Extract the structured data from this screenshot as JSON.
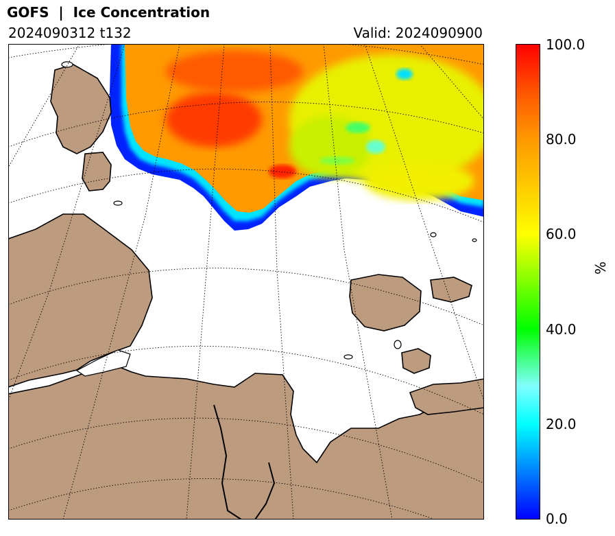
{
  "header": {
    "title": "GOFS  |  Ice Concentration",
    "run": "2024090312 t132",
    "valid": "Valid: 2024090900"
  },
  "colorbar": {
    "unit": "%",
    "ticks": [
      "0.0",
      "20.0",
      "40.0",
      "60.0",
      "80.0",
      "100.0"
    ],
    "min": 0,
    "max": 100
  },
  "colors": {
    "land": "#bc9b7e",
    "ocean": "#ffffff",
    "coastline": "#000000",
    "graticule": "#000000"
  },
  "map": {
    "field": "sea ice concentration",
    "ice_edge": "ice pack in the north, open water in the central and southern sea"
  }
}
